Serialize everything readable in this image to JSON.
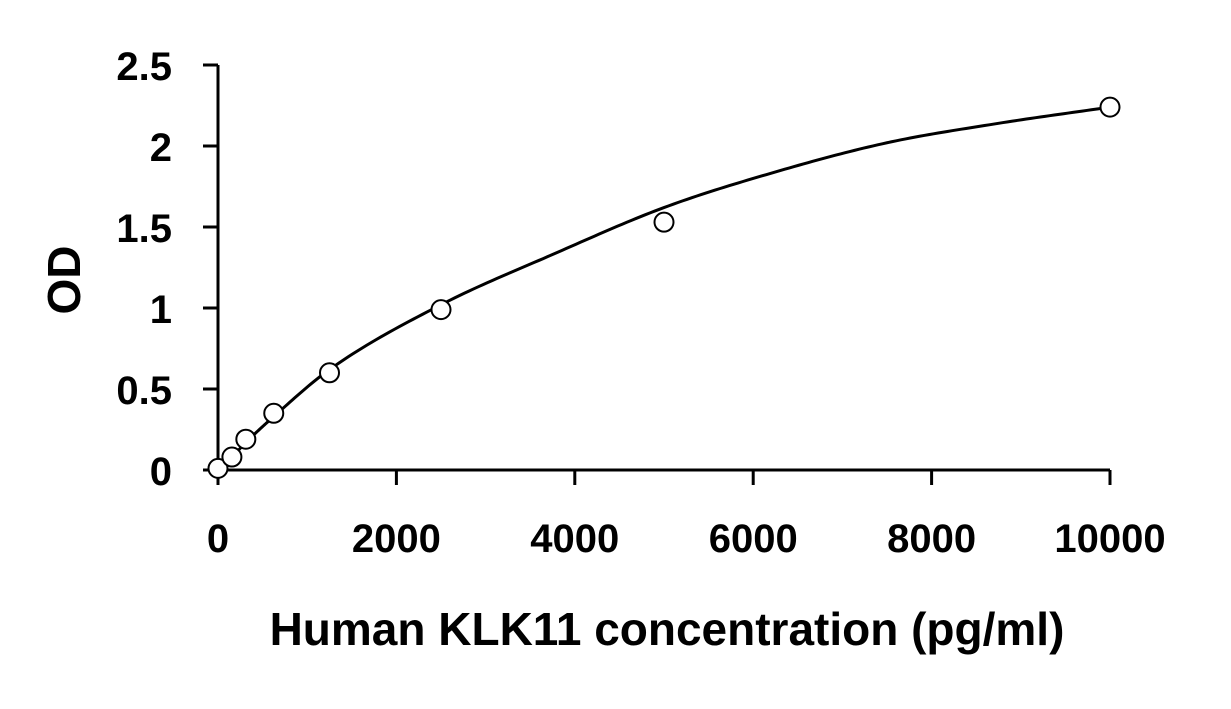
{
  "chart_data": {
    "type": "scatter",
    "title": "",
    "xlabel": "Human KLK11 concentration (pg/ml)",
    "ylabel": "OD",
    "xlim": [
      0,
      10000
    ],
    "ylim": [
      0,
      2.5
    ],
    "xticks": [
      0,
      2000,
      4000,
      6000,
      8000,
      10000
    ],
    "xtick_labels": [
      "0",
      "2000",
      "4000",
      "6000",
      "8000",
      "10000"
    ],
    "yticks": [
      0,
      0.5,
      1,
      1.5,
      2,
      2.5
    ],
    "ytick_labels": [
      "0",
      "0.5",
      "1",
      "1.5",
      "2",
      "2.5"
    ],
    "grid": false,
    "legend": "none",
    "series": [
      {
        "marker": "open-circle",
        "x": [
          0,
          156,
          312,
          625,
          1250,
          2500,
          5000,
          10000
        ],
        "y": [
          0.01,
          0.08,
          0.19,
          0.35,
          0.6,
          0.99,
          1.53,
          2.24
        ]
      }
    ],
    "fit_curve": {
      "x": [
        0,
        156,
        312,
        625,
        1250,
        2500,
        3750,
        5000,
        6250,
        7500,
        8750,
        10000
      ],
      "y": [
        0.0,
        0.08,
        0.17,
        0.33,
        0.62,
        1.02,
        1.33,
        1.62,
        1.84,
        2.02,
        2.14,
        2.24
      ]
    }
  }
}
